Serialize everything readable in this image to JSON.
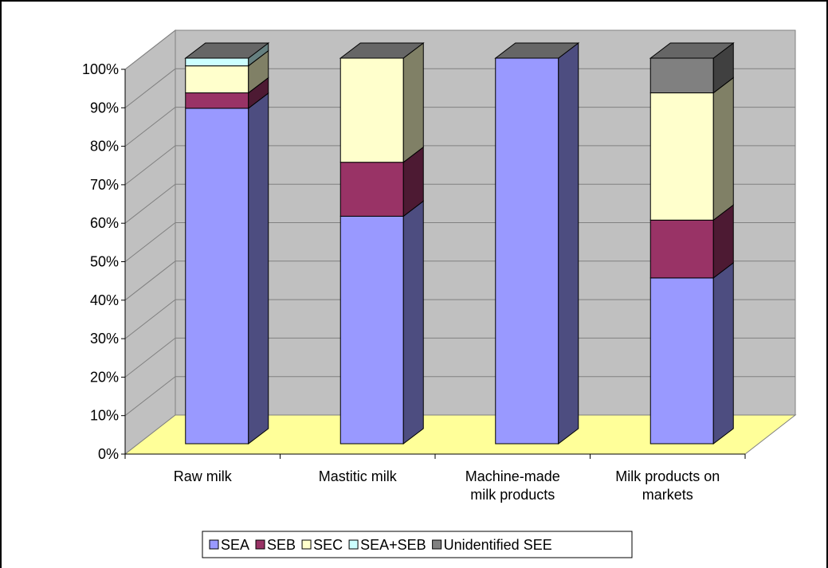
{
  "chart_data": {
    "type": "bar",
    "stacked": true,
    "style": "3d-stacked-column-100",
    "categories": [
      [
        "Raw milk"
      ],
      [
        "Mastitic milk"
      ],
      [
        "Machine-made",
        "milk products"
      ],
      [
        "Milk products on",
        "markets"
      ]
    ],
    "series": [
      {
        "name": "SEA",
        "values": [
          87,
          59,
          100,
          43
        ]
      },
      {
        "name": "SEB",
        "values": [
          4,
          14,
          0,
          15
        ]
      },
      {
        "name": "SEC",
        "values": [
          7,
          27,
          0,
          33
        ]
      },
      {
        "name": "SEA+SEB",
        "values": [
          2,
          0,
          0,
          0
        ]
      },
      {
        "name": "Unidentified SEE",
        "values": [
          0,
          0,
          0,
          9
        ]
      }
    ],
    "ylim": [
      0,
      100
    ],
    "yticks": [
      "0%",
      "10%",
      "20%",
      "30%",
      "40%",
      "50%",
      "60%",
      "70%",
      "80%",
      "90%",
      "100%"
    ],
    "grid": true,
    "legend_position": "bottom",
    "colors": {
      "SEA": {
        "front": "#9999FF",
        "side": "#4D4D80",
        "top": "#7373BF"
      },
      "SEB": {
        "front": "#993366",
        "side": "#4D1A33",
        "top": "#73264D"
      },
      "SEC": {
        "front": "#FFFFCC",
        "side": "#808066",
        "top": "#BFBF99"
      },
      "SEA+SEB": {
        "front": "#CCFFFF",
        "side": "#668080",
        "top": "#99BFBF"
      },
      "Unidentified SEE": {
        "front": "#808080",
        "side": "#404040",
        "top": "#606060"
      },
      "wall": "#C0C0C0",
      "floor": "#FFFF99",
      "cap": "#666666"
    }
  }
}
